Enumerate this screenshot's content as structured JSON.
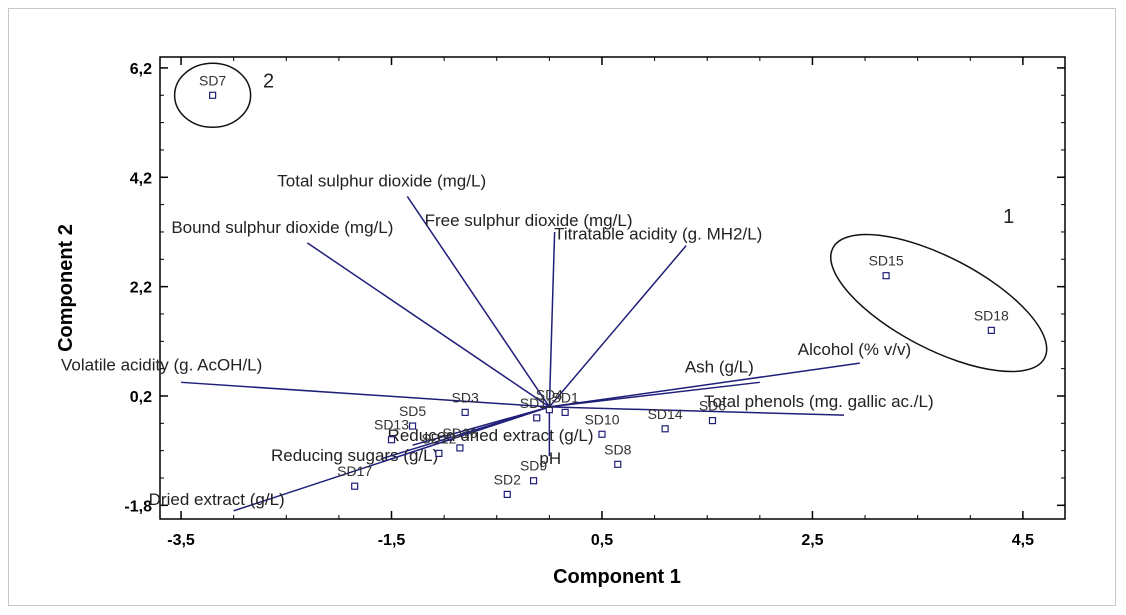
{
  "chart_data": {
    "type": "scatter",
    "subtype": "biplot",
    "xlabel": "Component 1",
    "ylabel": "Component 2",
    "xlim": [
      -3.7,
      4.9
    ],
    "ylim": [
      -2.05,
      6.4
    ],
    "xticks": [
      "-3,5",
      "-1,5",
      "0,5",
      "2,5",
      "4,5"
    ],
    "xtick_values": [
      -3.5,
      -1.5,
      0.5,
      2.5,
      4.5
    ],
    "yticks": [
      "-1,8",
      "0,2",
      "2,2",
      "4,2",
      "6,2"
    ],
    "ytick_values": [
      -1.8,
      0.2,
      2.2,
      4.2,
      6.2
    ],
    "grid": false,
    "line_color": "#1f1f7a",
    "marker_color": "#1f1f7a",
    "points": [
      {
        "label": "SD7",
        "x": -3.2,
        "y": 5.7
      },
      {
        "label": "SD15",
        "x": 3.2,
        "y": 2.4
      },
      {
        "label": "SD18",
        "x": 4.2,
        "y": 1.4
      },
      {
        "label": "SD1",
        "x": 0.15,
        "y": -0.1
      },
      {
        "label": "SD4",
        "x": 0.0,
        "y": -0.05
      },
      {
        "label": "SD11",
        "x": -0.12,
        "y": -0.2
      },
      {
        "label": "SD3",
        "x": -0.8,
        "y": -0.1
      },
      {
        "label": "SD5",
        "x": -1.3,
        "y": -0.35
      },
      {
        "label": "SD13",
        "x": -1.5,
        "y": -0.6
      },
      {
        "label": "SD16",
        "x": -0.85,
        "y": -0.75
      },
      {
        "label": "SD12",
        "x": -1.05,
        "y": -0.85
      },
      {
        "label": "SD17",
        "x": -1.85,
        "y": -1.45
      },
      {
        "label": "SD2",
        "x": -0.4,
        "y": -1.6
      },
      {
        "label": "SD9",
        "x": -0.15,
        "y": -1.35
      },
      {
        "label": "SD10",
        "x": 0.5,
        "y": -0.5
      },
      {
        "label": "SD8",
        "x": 0.65,
        "y": -1.05
      },
      {
        "label": "SD14",
        "x": 1.1,
        "y": -0.4
      },
      {
        "label": "SD6",
        "x": 1.55,
        "y": -0.25
      }
    ],
    "vectors": [
      {
        "label": "Total sulphur dioxide (mg/L)",
        "x": -1.35,
        "y": 3.85
      },
      {
        "label": "Bound sulphur dioxide (mg/L)",
        "x": -2.3,
        "y": 3.0
      },
      {
        "label": "Free sulphur dioxide (mg/L)",
        "x": 0.05,
        "y": 3.2
      },
      {
        "label": "Titratable acidity (g. MH2/L)",
        "x": 1.3,
        "y": 2.95
      },
      {
        "label": "Volatile acidity (g. AcOH/L)",
        "x": -3.5,
        "y": 0.45
      },
      {
        "label": "Alcohol (% v/v)",
        "x": 2.95,
        "y": 0.8
      },
      {
        "label": "Ash (g/L)",
        "x": 2.0,
        "y": 0.45
      },
      {
        "label": "Total phenols (mg. gallic ac./L)",
        "x": 2.8,
        "y": -0.15
      },
      {
        "label": "Reduced dried extract (g/L)",
        "x": -1.3,
        "y": -0.7
      },
      {
        "label": "Reducing sugars (g/L)",
        "x": -1.6,
        "y": -0.95
      },
      {
        "label": "pH",
        "x": 0.0,
        "y": -0.9
      },
      {
        "label": "Dried extract (g/L)",
        "x": -3.0,
        "y": -1.9
      }
    ],
    "groups": [
      {
        "label": "2",
        "members": [
          "SD7"
        ]
      },
      {
        "label": "1",
        "members": [
          "SD15",
          "SD18"
        ]
      }
    ]
  }
}
